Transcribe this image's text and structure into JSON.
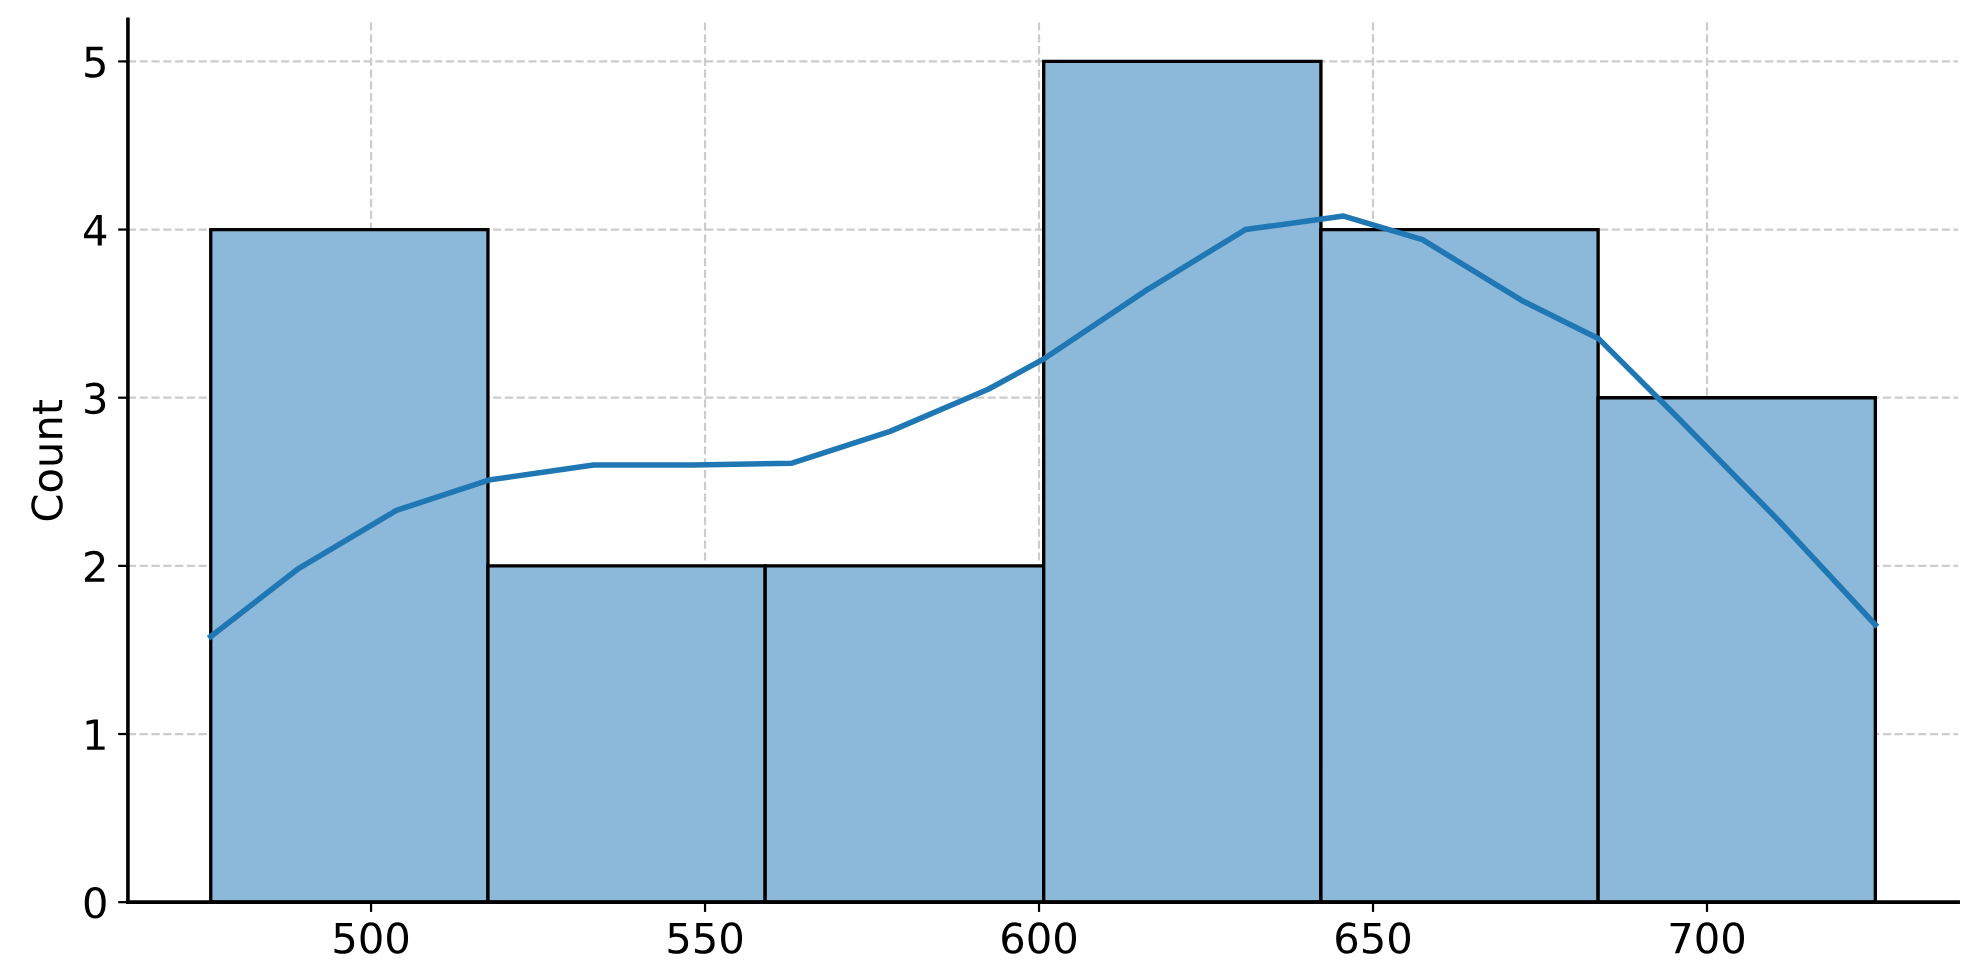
{
  "chart_data": {
    "type": "histogram",
    "ylabel": "Count",
    "bins": [
      476,
      517.5,
      559,
      600.7,
      642.2,
      683.7,
      725.2
    ],
    "values": [
      4,
      2,
      2,
      5,
      4,
      3
    ],
    "color": "#8cb9da",
    "series": [
      {
        "type": "line",
        "color": "#1f77b4",
        "x": [
          476,
          489,
          503.8,
          517.6,
          533.3,
          548.1,
          562.9,
          577.7,
          592.4,
          600.7,
          616.1,
          630.9,
          645.6,
          657.4,
          672.2,
          683.8,
          695.9,
          710.7,
          725.2
        ],
        "values": [
          1.58,
          1.98,
          2.33,
          2.51,
          2.6,
          2.6,
          2.61,
          2.8,
          3.05,
          3.23,
          3.64,
          4.0,
          4.08,
          3.94,
          3.58,
          3.35,
          2.87,
          2.27,
          1.65
        ]
      }
    ],
    "xlim": [
      463.6,
      737.6
    ],
    "xticks": [
      500,
      550,
      600,
      650,
      700
    ],
    "ylim": [
      0,
      5.25
    ],
    "yticks": [
      0,
      1,
      2,
      3,
      4,
      5
    ],
    "grid": true,
    "line_style": "solid"
  }
}
